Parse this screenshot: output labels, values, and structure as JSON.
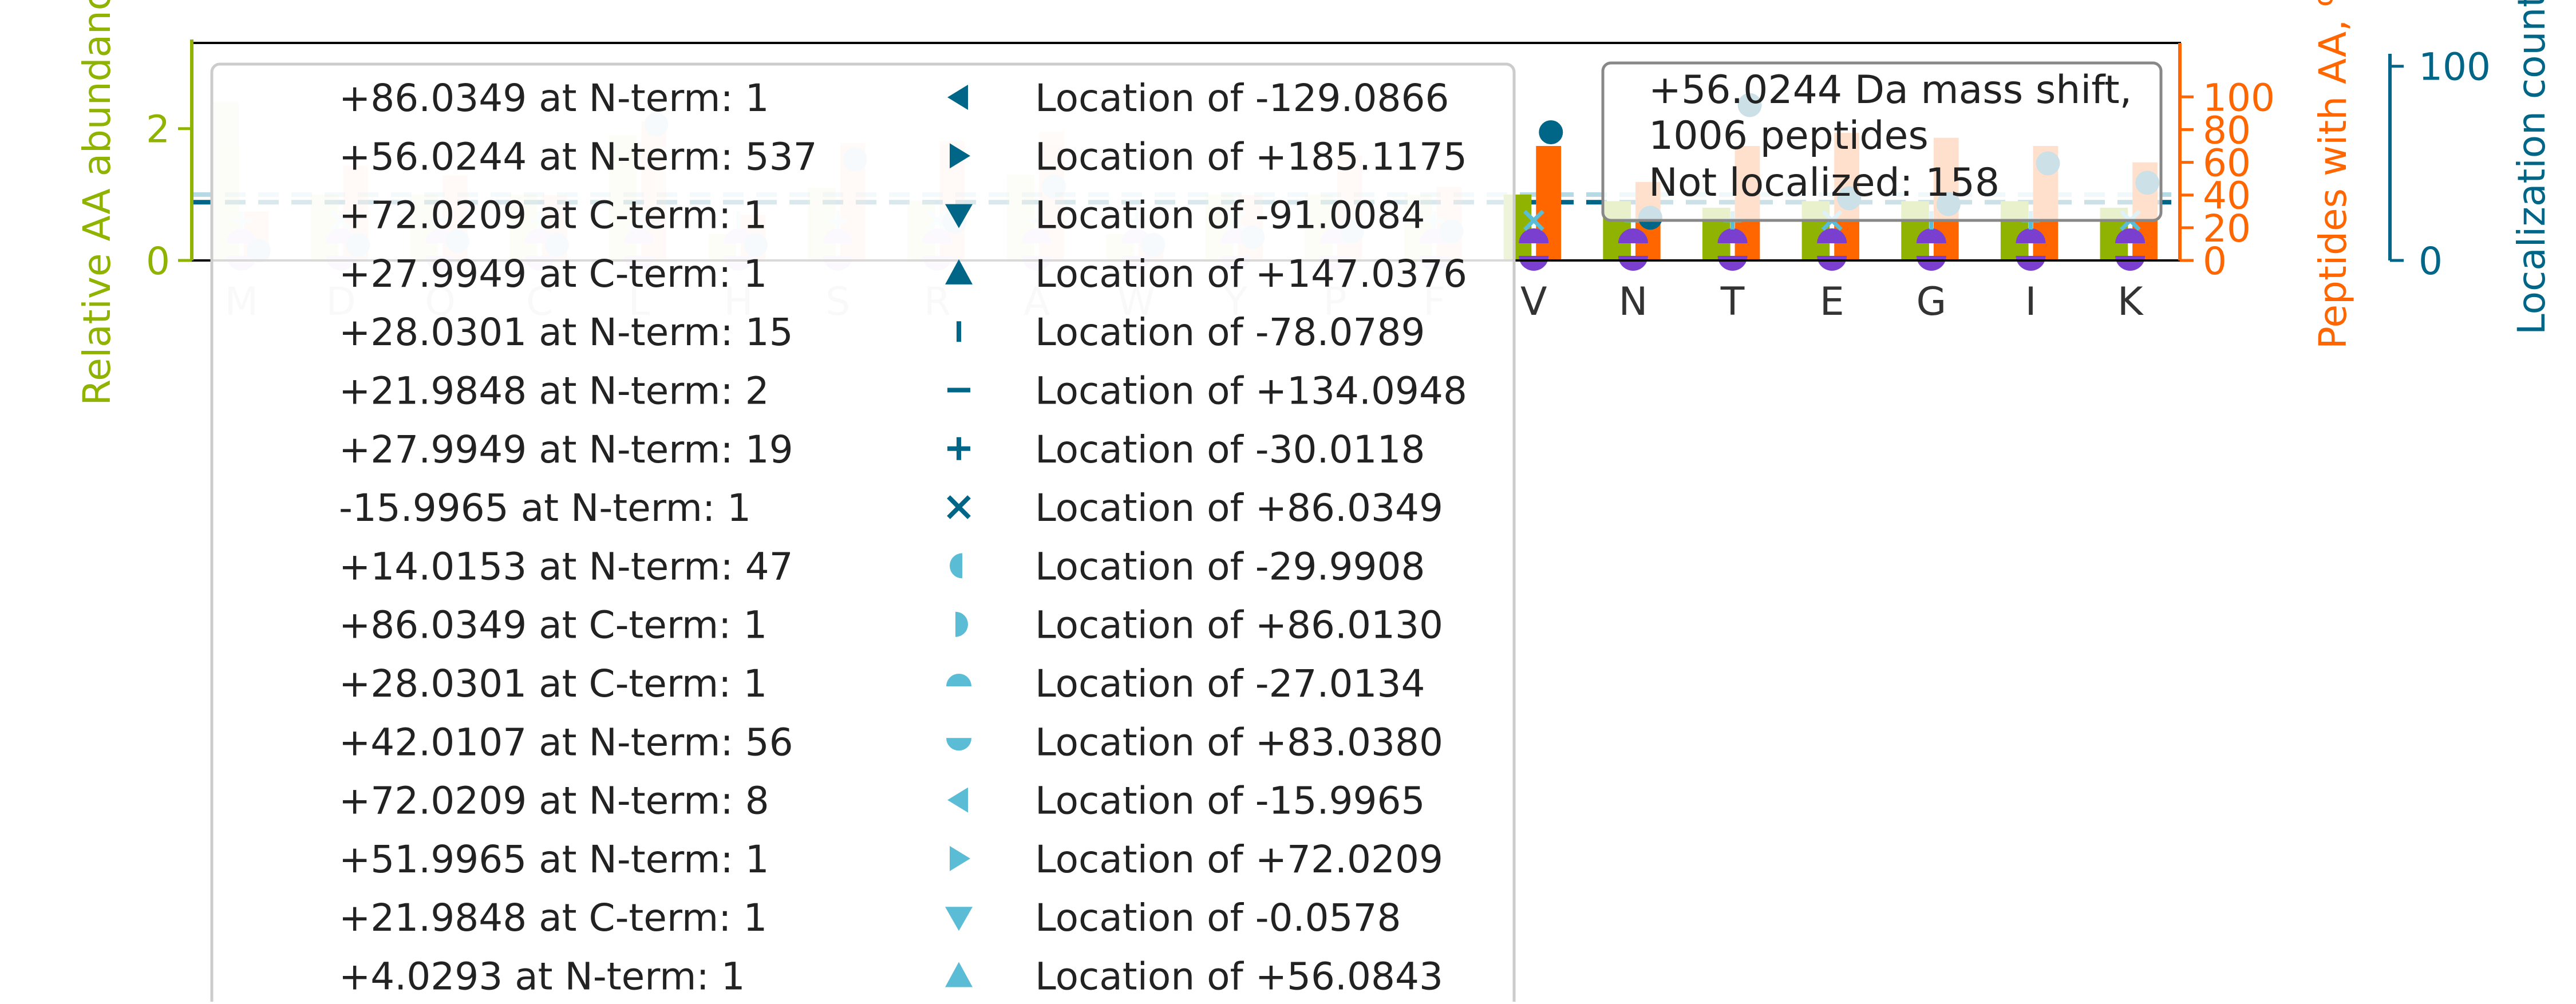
{
  "colors": {
    "left_axis": "#8fb300",
    "right_axis": "#ff6600",
    "far_axis": "#006688",
    "aa_bar": "#8fb300",
    "peptide_bar": "#ff6600",
    "localization_dot": "#006688",
    "nterm_mark": "#7a3fcf",
    "marker_light": "#5bbcd6",
    "text": "#222222",
    "tick_label": "#333333"
  },
  "chart_data": {
    "type": "bar",
    "ylabel_left": "Relative AA abundance",
    "ylabel_right": "Peptides with AA, %",
    "ylabel_far": "Localization count",
    "ylim_left": [
      0,
      3.3
    ],
    "yticks_left": [
      0,
      2
    ],
    "ylim_right": [
      0,
      133
    ],
    "yticks_right": [
      0,
      20,
      40,
      60,
      80,
      100
    ],
    "ylim_far": [
      0,
      112
    ],
    "yticks_far": [
      0,
      100
    ],
    "grid": false,
    "reference_lines": [
      {
        "axis": "left",
        "value": 1.0,
        "color": "#b7d9e3",
        "style": "dashed"
      },
      {
        "axis": "far",
        "value": 30,
        "color": "#006688",
        "style": "dashed"
      }
    ],
    "categories": [
      "M",
      "D",
      "Q",
      "C",
      "L",
      "H",
      "S",
      "R",
      "A",
      "W",
      "Y",
      "P",
      "F",
      "V",
      "N",
      "T",
      "E",
      "G",
      "I",
      "K"
    ],
    "faded_categories": [
      "M",
      "D",
      "Q",
      "C",
      "L",
      "H",
      "S",
      "R",
      "A",
      "W",
      "Y",
      "P",
      "F"
    ],
    "series": [
      {
        "values": [
          2.4,
          1.0,
          1.0,
          1.0,
          1.9,
          0.4,
          1.1,
          0.9,
          1.3,
          0.4,
          1.0,
          1.0,
          1.0,
          1.0,
          0.9,
          0.8,
          0.9,
          0.9,
          0.9,
          0.8
        ]
      },
      {
        "values": [
          30,
          58,
          52,
          40,
          85,
          28,
          72,
          73,
          79,
          12,
          40,
          64,
          45,
          70,
          48,
          70,
          78,
          75,
          70,
          60
        ]
      },
      {
        "values": [
          5,
          8,
          10,
          8,
          70,
          8,
          52,
          20,
          38,
          8,
          12,
          15,
          15,
          66,
          22,
          80,
          32,
          29,
          50,
          40
        ]
      }
    ],
    "annotation": {
      "line1": "+56.0244 Da mass shift,",
      "line2": "1006 peptides",
      "line3": "Not localized: 158"
    },
    "legend": {
      "placement": "upper-left",
      "left_column": [
        "+86.0349 at N-term: 1",
        "+56.0244 at N-term: 537",
        "+72.0209 at C-term: 1",
        "+27.9949 at C-term: 1",
        "+28.0301 at N-term: 15",
        "+21.9848 at N-term: 2",
        "+27.9949 at N-term: 19",
        "-15.9965 at N-term: 1",
        "+14.0153 at N-term: 47",
        "+86.0349 at C-term: 1",
        "+28.0301 at C-term: 1",
        "+42.0107 at N-term: 56",
        "+72.0209 at N-term: 8",
        "+51.9965 at N-term: 1",
        "+21.9848 at C-term: 1",
        "+4.0293 at N-term: 1"
      ],
      "right_column": [
        {
          "label": "Location of -129.0866",
          "marker": "triangle-left"
        },
        {
          "label": "Location of +185.1175",
          "marker": "triangle-right"
        },
        {
          "label": "Location of -91.0084",
          "marker": "triangle-down"
        },
        {
          "label": "Location of +147.0376",
          "marker": "triangle-up"
        },
        {
          "label": "Location of -78.0789",
          "marker": "vline"
        },
        {
          "label": "Location of +134.0948",
          "marker": "hline"
        },
        {
          "label": "Location of -30.0118",
          "marker": "plus"
        },
        {
          "label": "Location of +86.0349",
          "marker": "x"
        },
        {
          "label": "Location of -29.9908",
          "marker": "half-left"
        },
        {
          "label": "Location of +86.0130",
          "marker": "half-right"
        },
        {
          "label": "Location of -27.0134",
          "marker": "half-top"
        },
        {
          "label": "Location of +83.0380",
          "marker": "half-bottom"
        },
        {
          "label": "Location of -15.9965",
          "marker": "tri-left-light"
        },
        {
          "label": "Location of +72.0209",
          "marker": "tri-right-light"
        },
        {
          "label": "Location of -0.0578",
          "marker": "tri-down-light"
        },
        {
          "label": "Location of +56.0843",
          "marker": "tri-up-light"
        }
      ]
    }
  }
}
